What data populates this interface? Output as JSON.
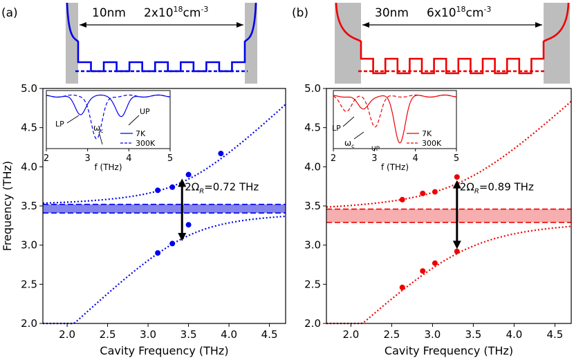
{
  "chart_data": [
    {
      "type": "scatter",
      "panel_label": "(a)",
      "color": "#0000ee",
      "band_color": "#6f6fe6",
      "xlabel": "Cavity Frequency (THz)",
      "ylabel": "Frequency (THz)",
      "xlim": [
        1.7,
        4.7
      ],
      "ylim": [
        2.0,
        5.0
      ],
      "xticks": [
        2.0,
        2.5,
        3.0,
        3.5,
        4.0,
        4.5
      ],
      "yticks": [
        2.0,
        2.5,
        3.0,
        3.5,
        4.0,
        4.5,
        5.0
      ],
      "xtick_labels": [
        "2.0",
        "2.5",
        "3.0",
        "3.5",
        "4.0",
        "4.5"
      ],
      "ytick_labels": [
        "2.0",
        "2.5",
        "3.0",
        "3.5",
        "4.0",
        "4.5",
        "5.0"
      ],
      "intersubband_band": [
        3.41,
        3.52
      ],
      "fit": {
        "omega_isb": 3.465,
        "rabi_half": 0.36
      },
      "upper_points": [
        [
          3.12,
          3.7
        ],
        [
          3.3,
          3.74
        ],
        [
          3.5,
          3.9
        ],
        [
          3.9,
          4.17
        ]
      ],
      "lower_points": [
        [
          3.12,
          2.9
        ],
        [
          3.3,
          3.02
        ],
        [
          3.5,
          3.26
        ]
      ],
      "arrow_x": 3.42,
      "arrow_y": [
        3.05,
        3.85
      ],
      "rabi_label": "2Ω",
      "rabi_sub": "R",
      "rabi_value": "=0.72 THz",
      "structure": {
        "width_label": "10nm",
        "doping_label": "2x10",
        "doping_exp": "18",
        "doping_unit": "cm",
        "doping_unit_exp": "-3"
      },
      "inset": {
        "xlim": [
          2,
          5
        ],
        "xticks": [
          2,
          3,
          4,
          5
        ],
        "xtick_labels": [
          "2",
          "3",
          "4",
          "5"
        ],
        "xlabel": "f (THz)",
        "legend": [
          "7K",
          "300K"
        ],
        "lp_label": "LP",
        "up_label": "UP",
        "wc_label": "ω",
        "wc_sub": "c",
        "dips_7k": [
          [
            2.82,
            0.38
          ],
          [
            3.82,
            0.42
          ]
        ],
        "dips_300k": [
          [
            3.22,
            0.9
          ]
        ]
      }
    },
    {
      "type": "scatter",
      "panel_label": "(b)",
      "color": "#ee0000",
      "band_color": "#f5a0a0",
      "xlabel": "Cavity Frequency (THz)",
      "ylabel": "",
      "xlim": [
        1.7,
        4.7
      ],
      "ylim": [
        2.0,
        5.0
      ],
      "xticks": [
        2.0,
        2.5,
        3.0,
        3.5,
        4.0,
        4.5
      ],
      "yticks": [
        2.0,
        2.5,
        3.0,
        3.5,
        4.0,
        4.5,
        5.0
      ],
      "xtick_labels": [
        "2.0",
        "2.5",
        "3.0",
        "3.5",
        "4.0",
        "4.5"
      ],
      "ytick_labels": [
        "2.0",
        "2.5",
        "3.0",
        "3.5",
        "4.0",
        "4.5",
        "5.0"
      ],
      "intersubband_band": [
        3.29,
        3.46
      ],
      "fit": {
        "omega_isb": 3.375,
        "rabi_half": 0.445
      },
      "upper_points": [
        [
          2.63,
          3.58
        ],
        [
          2.88,
          3.66
        ],
        [
          3.03,
          3.68
        ],
        [
          3.3,
          3.87
        ]
      ],
      "lower_points": [
        [
          2.63,
          2.46
        ],
        [
          2.88,
          2.67
        ],
        [
          3.03,
          2.77
        ],
        [
          3.3,
          2.92
        ]
      ],
      "arrow_x": 3.3,
      "arrow_y": [
        2.95,
        3.83
      ],
      "rabi_label": "2Ω",
      "rabi_sub": "R",
      "rabi_value": "=0.89 THz",
      "structure": {
        "width_label": "30nm",
        "doping_label": "6x10",
        "doping_exp": "18",
        "doping_unit": "cm",
        "doping_unit_exp": "-3"
      },
      "inset": {
        "xlim": [
          2,
          5
        ],
        "xticks": [
          2,
          3,
          4,
          5
        ],
        "xtick_labels": [
          "2",
          "3",
          "4",
          "5"
        ],
        "xlabel": "f (THz)",
        "legend": [
          "7K",
          "300K"
        ],
        "lp_label": "LP",
        "up_label": "UP",
        "wc_label": "ω",
        "wc_sub": "c",
        "dips_7k": [
          [
            2.72,
            0.28
          ],
          [
            3.62,
            0.95
          ]
        ],
        "dips_300k": [
          [
            2.32,
            0.3
          ],
          [
            3.02,
            0.62
          ]
        ]
      }
    }
  ]
}
